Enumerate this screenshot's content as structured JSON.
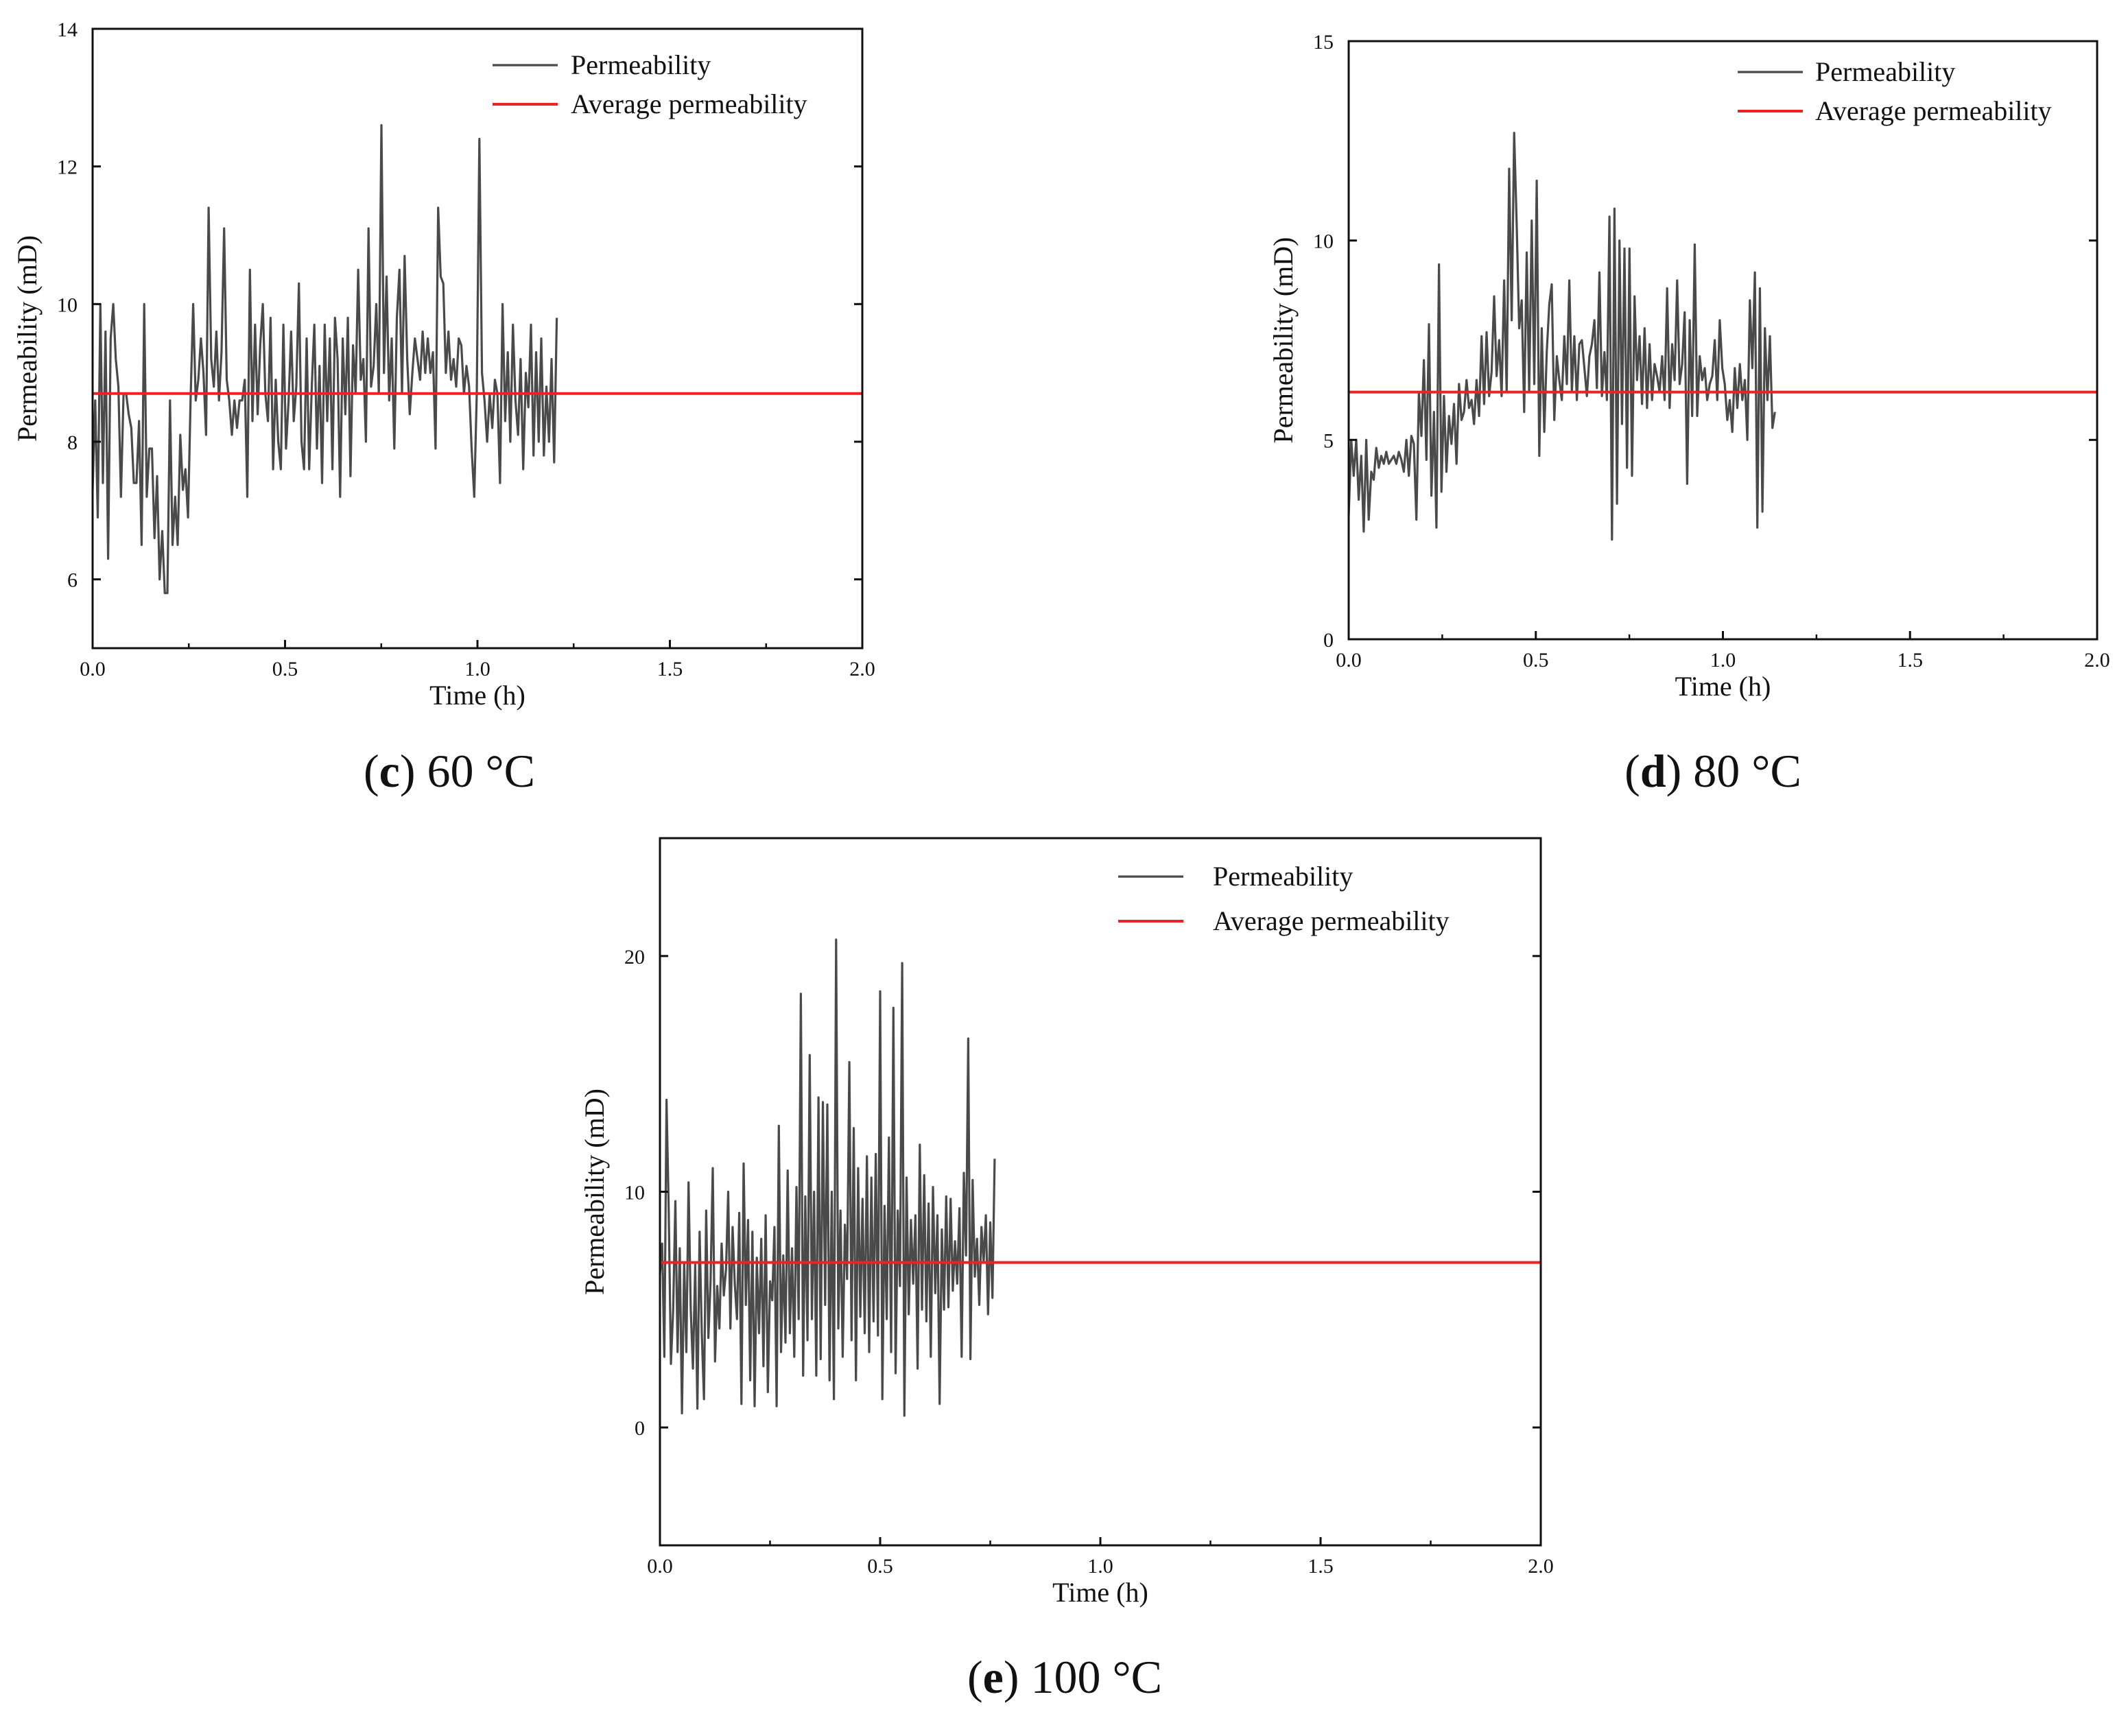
{
  "chart_data": [
    {
      "type": "line",
      "id": "c",
      "caption": {
        "letter": "c",
        "text": ") 60 °C",
        "open": "("
      },
      "xlabel": "Time (h)",
      "ylabel": "Permeability (mD)",
      "xlim": [
        0,
        2
      ],
      "ylim": [
        5,
        14
      ],
      "xticks": [
        "0.0",
        "0.5",
        "1.0",
        "1.5",
        "2.0"
      ],
      "xtick_values": [
        0,
        0.5,
        1,
        1.5,
        2
      ],
      "yticks": [
        "6",
        "8",
        "10",
        "12",
        "14"
      ],
      "ytick_values": [
        6,
        8,
        10,
        12,
        14
      ],
      "legend": {
        "position": "top-right",
        "entries": [
          "Permeability",
          "Average permeability"
        ]
      },
      "colors": {
        "series": "#4a4a4a",
        "average": "#ee2222"
      },
      "average": 8.7,
      "series": [
        {
          "name": "Permeability",
          "x_step": 0.0067,
          "values": [
            7.3,
            8.6,
            6.9,
            10.0,
            7.4,
            9.6,
            6.3,
            9.5,
            10.0,
            9.2,
            8.8,
            7.2,
            8.7,
            8.7,
            8.4,
            8.2,
            7.4,
            7.4,
            8.3,
            6.5,
            10.0,
            7.2,
            7.9,
            7.9,
            6.6,
            7.5,
            6.0,
            6.7,
            5.8,
            5.8,
            8.6,
            6.5,
            7.2,
            6.5,
            8.1,
            7.3,
            7.6,
            6.9,
            8.6,
            10.0,
            8.6,
            8.9,
            9.5,
            9.0,
            8.1,
            11.4,
            9.2,
            8.8,
            9.6,
            8.6,
            9.3,
            11.1,
            8.9,
            8.6,
            8.1,
            8.6,
            8.2,
            8.6,
            8.6,
            8.9,
            7.2,
            10.5,
            8.3,
            9.7,
            8.4,
            9.4,
            10.0,
            8.7,
            8.3,
            9.8,
            7.6,
            8.9,
            8.0,
            7.6,
            9.7,
            7.9,
            8.6,
            9.6,
            8.3,
            8.8,
            10.3,
            8.0,
            7.6,
            9.5,
            7.6,
            8.8,
            9.7,
            7.9,
            9.1,
            7.4,
            9.7,
            8.3,
            9.5,
            7.6,
            9.8,
            9.2,
            7.2,
            9.5,
            8.4,
            9.8,
            7.5,
            9.4,
            8.7,
            10.5,
            8.9,
            9.2,
            8.0,
            11.1,
            8.8,
            9.1,
            10.0,
            8.7,
            12.6,
            9.0,
            10.4,
            8.6,
            9.5,
            7.9,
            9.8,
            10.5,
            8.7,
            10.7,
            9.2,
            8.4,
            9.0,
            9.5,
            9.2,
            8.9,
            9.6,
            9.0,
            9.5,
            9.0,
            9.3,
            7.9,
            11.4,
            10.4,
            10.3,
            9.0,
            9.6,
            8.9,
            9.2,
            8.8,
            9.5,
            9.4,
            8.7,
            9.1,
            8.8,
            7.9,
            7.2,
            8.7,
            12.4,
            9.0,
            8.6,
            8.0,
            8.7,
            8.2,
            8.9,
            8.7,
            7.4,
            10.0,
            8.3,
            9.3,
            8.0,
            9.7,
            8.6,
            8.1,
            9.2,
            7.6,
            9.0,
            8.5,
            9.7,
            7.8,
            9.3,
            8.0,
            9.5,
            7.8,
            8.8,
            8.0,
            9.2,
            7.7,
            9.8
          ]
        }
      ]
    },
    {
      "type": "line",
      "id": "d",
      "caption": {
        "letter": "d",
        "text": ") 80 °C",
        "open": "("
      },
      "xlabel": "Time (h)",
      "ylabel": "Permeability (mD)",
      "xlim": [
        0,
        2
      ],
      "ylim": [
        0,
        15
      ],
      "xticks": [
        "0.0",
        "0.5",
        "1.0",
        "1.5",
        "2.0"
      ],
      "xtick_values": [
        0,
        0.5,
        1,
        1.5,
        2
      ],
      "yticks": [
        "0",
        "5",
        "10",
        "15"
      ],
      "ytick_values": [
        0,
        5,
        10,
        15
      ],
      "legend": {
        "position": "top-right",
        "entries": [
          "Permeability",
          "Average permeability"
        ]
      },
      "colors": {
        "series": "#4a4a4a",
        "average": "#ee2222"
      },
      "average": 6.2,
      "series": [
        {
          "name": "Permeability",
          "x_step": 0.0067,
          "values": [
            3.1,
            5.0,
            4.1,
            5.0,
            3.5,
            4.6,
            2.7,
            5.0,
            3.0,
            4.2,
            4.0,
            4.8,
            4.3,
            4.6,
            4.4,
            4.7,
            4.4,
            4.5,
            4.6,
            4.4,
            4.7,
            4.5,
            4.2,
            5.0,
            4.1,
            5.1,
            4.9,
            3.0,
            6.2,
            5.1,
            7.0,
            4.5,
            7.9,
            3.6,
            5.7,
            2.8,
            9.4,
            3.7,
            6.1,
            4.2,
            5.6,
            4.9,
            5.9,
            4.4,
            6.4,
            5.5,
            5.7,
            6.5,
            5.8,
            6.0,
            5.4,
            6.5,
            5.6,
            7.6,
            5.9,
            7.7,
            6.1,
            6.7,
            8.6,
            6.6,
            7.5,
            6.1,
            9.0,
            6.2,
            11.8,
            8.0,
            12.7,
            10.4,
            7.8,
            8.5,
            5.7,
            9.7,
            6.2,
            10.5,
            6.4,
            11.5,
            4.6,
            7.8,
            5.2,
            7.2,
            8.4,
            8.9,
            5.5,
            7.1,
            6.5,
            6.0,
            7.6,
            6.4,
            9.0,
            6.2,
            7.6,
            6.0,
            7.4,
            7.5,
            6.8,
            6.1,
            7.1,
            7.4,
            8.0,
            6.3,
            9.2,
            6.1,
            7.2,
            6.0,
            10.6,
            2.5,
            10.8,
            3.4,
            10.0,
            5.4,
            9.8,
            4.3,
            9.8,
            4.1,
            8.6,
            6.5,
            7.6,
            5.9,
            7.8,
            5.8,
            7.4,
            6.0,
            6.9,
            6.6,
            6.2,
            7.1,
            6.0,
            8.8,
            5.8,
            7.4,
            6.5,
            9.0,
            6.4,
            6.9,
            8.2,
            3.9,
            8.0,
            5.6,
            9.9,
            5.6,
            7.1,
            6.5,
            6.8,
            6.0,
            6.4,
            6.6,
            7.5,
            6.0,
            8.0,
            6.8,
            6.4,
            5.5,
            6.0,
            5.2,
            6.8,
            5.8,
            6.9,
            6.0,
            6.5,
            5.0,
            8.5,
            6.8,
            9.2,
            2.8,
            8.8,
            3.2,
            7.8,
            6.0,
            7.6,
            5.3,
            5.7
          ]
        }
      ]
    },
    {
      "type": "line",
      "id": "e",
      "caption": {
        "letter": "e",
        "text": ") 100 °C",
        "open": "("
      },
      "xlabel": "Time (h)",
      "ylabel": "Permeability (mD)",
      "xlim": [
        0,
        2
      ],
      "ylim": [
        -5,
        25
      ],
      "xticks": [
        "0.0",
        "0.5",
        "1.0",
        "1.5",
        "2.0"
      ],
      "xtick_values": [
        0,
        0.5,
        1,
        1.5,
        2
      ],
      "yticks": [
        "0",
        "10",
        "20"
      ],
      "ytick_values": [
        0,
        10,
        20
      ],
      "legend": {
        "position": "top-right",
        "entries": [
          "Permeability",
          "Average permeability"
        ]
      },
      "colors": {
        "series": "#4a4a4a",
        "average": "#ee2222"
      },
      "average": 7.0,
      "series": [
        {
          "name": "Permeability",
          "x_step": 0.005,
          "values": [
            6.5,
            7.8,
            3.0,
            13.9,
            9.2,
            2.7,
            5.0,
            9.6,
            3.2,
            7.6,
            0.6,
            7.0,
            3.2,
            10.4,
            5.0,
            2.5,
            6.9,
            0.8,
            8.3,
            4.0,
            1.2,
            9.2,
            3.8,
            6.2,
            11.0,
            2.8,
            6.0,
            4.2,
            7.8,
            5.6,
            6.7,
            10.0,
            4.2,
            8.5,
            6.1,
            4.6,
            9.1,
            1.0,
            11.2,
            5.2,
            8.8,
            2.0,
            8.3,
            0.9,
            7.2,
            4.0,
            8.0,
            2.6,
            9.0,
            1.5,
            6.2,
            5.4,
            8.5,
            0.9,
            12.8,
            3.2,
            7.3,
            3.6,
            10.9,
            4.0,
            7.6,
            3.0,
            10.2,
            4.6,
            18.4,
            2.2,
            9.8,
            3.7,
            15.8,
            4.6,
            10.0,
            2.2,
            14.0,
            2.9,
            13.8,
            5.2,
            13.7,
            2.0,
            10.0,
            1.2,
            20.7,
            4.2,
            9.2,
            3.0,
            8.6,
            6.3,
            15.5,
            3.7,
            12.7,
            2.0,
            11.0,
            4.7,
            9.7,
            4.0,
            11.5,
            3.2,
            10.6,
            4.5,
            11.6,
            3.9,
            18.5,
            1.2,
            9.4,
            4.6,
            12.3,
            3.2,
            17.8,
            2.3,
            9.2,
            6.0,
            19.7,
            0.5,
            10.6,
            4.8,
            8.8,
            6.1,
            9.0,
            2.5,
            12.0,
            5.0,
            10.7,
            4.5,
            9.5,
            3.0,
            10.2,
            5.7,
            9.0,
            1.0,
            8.4,
            5.0,
            9.8,
            5.1,
            9.7,
            5.8,
            7.9,
            6.1,
            9.3,
            3.0,
            10.8,
            7.3,
            16.5,
            2.9,
            10.5,
            6.4,
            8.0,
            5.2,
            8.5,
            7.0,
            9.0,
            4.8,
            8.7,
            5.5,
            11.4
          ]
        }
      ]
    }
  ]
}
